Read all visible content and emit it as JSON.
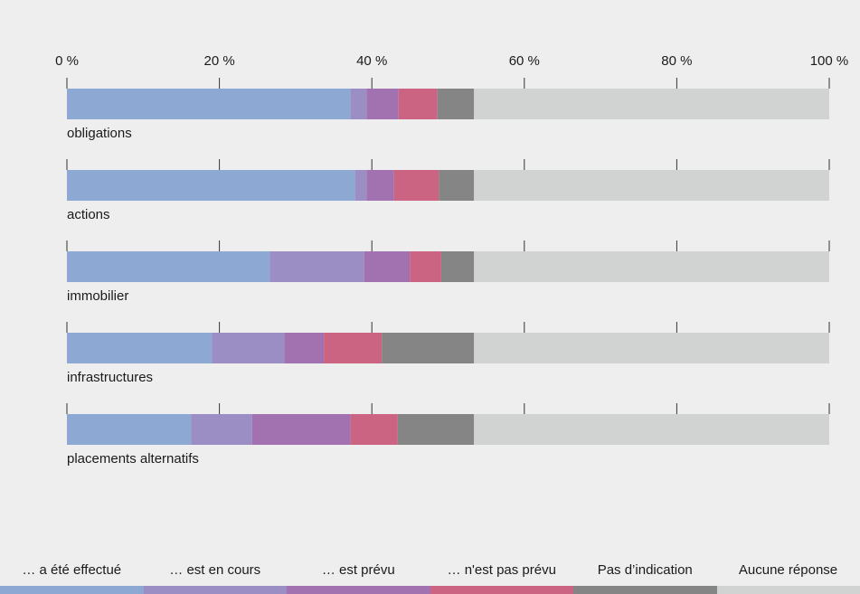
{
  "chart_data": {
    "type": "bar",
    "orientation": "horizontal",
    "stacked": true,
    "x_unit": "%",
    "xlim": [
      0,
      100
    ],
    "x_ticks": [
      0,
      20,
      40,
      60,
      80,
      100
    ],
    "x_tick_labels": [
      "0 %",
      "20 %",
      "40 %",
      "60 %",
      "80 %",
      "100 %"
    ],
    "categories": [
      "obligations",
      "actions",
      "immobilier",
      "infrastructures",
      "placements alternatifs"
    ],
    "series": [
      {
        "name": "… a été effectué",
        "color": "#8ea8d4",
        "values": [
          37.2,
          37.8,
          26.6,
          19.0,
          16.3
        ]
      },
      {
        "name": "… est en cours",
        "color": "#9a8ec4",
        "values": [
          2.1,
          1.5,
          12.4,
          9.5,
          8.0
        ]
      },
      {
        "name": "… est prévu",
        "color": "#a272b0",
        "values": [
          4.2,
          3.6,
          6.0,
          5.2,
          12.9
        ]
      },
      {
        "name": "… n'est pas prévu",
        "color": "#cb6482",
        "values": [
          5.1,
          5.9,
          4.1,
          7.6,
          6.2
        ]
      },
      {
        "name": "Pas d’indication",
        "color": "#858585",
        "values": [
          4.8,
          4.6,
          4.3,
          12.1,
          10.0
        ]
      },
      {
        "name": "Aucune réponse",
        "color": "#d1d2d2",
        "values": [
          46.6,
          46.6,
          46.6,
          46.6,
          46.6
        ]
      }
    ]
  }
}
